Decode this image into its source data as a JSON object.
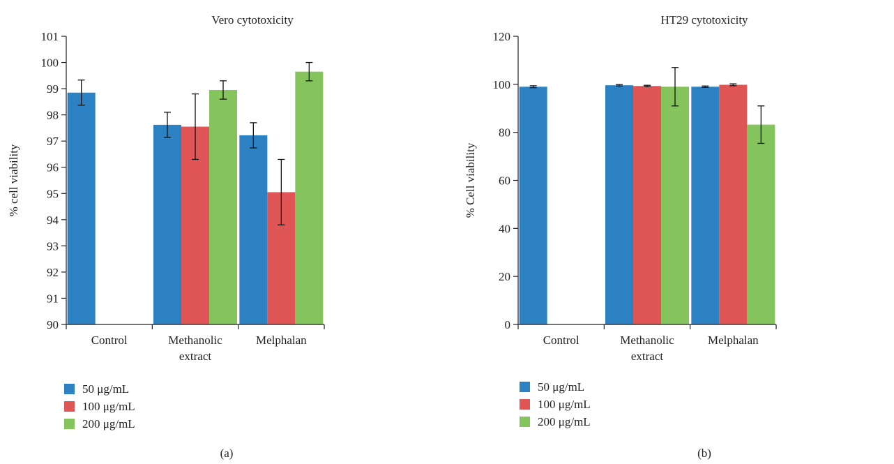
{
  "colors": {
    "s50": "#2b81c2",
    "s100": "#e05656",
    "s200": "#85c35c",
    "axis": "#222222"
  },
  "legend_labels": [
    "50 μg/mL",
    "100 μg/mL",
    "200 μg/mL"
  ],
  "chart_data": [
    {
      "type": "bar",
      "title": "Vero cytotoxicity",
      "ylabel": "% cell viability",
      "xlabel": "",
      "panel_label": "(a)",
      "categories": [
        [
          "Control"
        ],
        [
          "Methanolic",
          "extract"
        ],
        [
          "Melphalan"
        ]
      ],
      "ylim": [
        90,
        101
      ],
      "yticks": [
        90,
        91,
        92,
        93,
        94,
        95,
        96,
        97,
        98,
        99,
        100,
        101
      ],
      "grid": false,
      "legend": "bottom-left",
      "series": [
        {
          "name": "50 μg/mL",
          "values": [
            98.85,
            97.62,
            97.22
          ],
          "errors": [
            0.48,
            0.48,
            0.48
          ]
        },
        {
          "name": "100 μg/mL",
          "values": [
            null,
            97.55,
            95.05
          ],
          "errors": [
            null,
            1.25,
            1.25
          ]
        },
        {
          "name": "200 μg/mL",
          "values": [
            null,
            98.95,
            99.65
          ],
          "errors": [
            null,
            0.35,
            0.35
          ]
        }
      ]
    },
    {
      "type": "bar",
      "title": "HT29 cytotoxicity",
      "ylabel": "% Cell viability",
      "xlabel": "",
      "panel_label": "(b)",
      "categories": [
        [
          "Control"
        ],
        [
          "Methanolic",
          "extract"
        ],
        [
          "Melphalan"
        ]
      ],
      "ylim": [
        0,
        120
      ],
      "yticks": [
        0,
        20,
        40,
        60,
        80,
        100,
        120
      ],
      "grid": false,
      "legend": "bottom-left",
      "series": [
        {
          "name": "50 μg/mL",
          "values": [
            99.0,
            99.6,
            99.0
          ],
          "errors": [
            0.4,
            0.3,
            0.3
          ]
        },
        {
          "name": "100 μg/mL",
          "values": [
            null,
            99.3,
            99.8
          ],
          "errors": [
            null,
            0.3,
            0.4
          ]
        },
        {
          "name": "200 μg/mL",
          "values": [
            null,
            99.0,
            83.2
          ],
          "errors": [
            null,
            8.0,
            7.8
          ]
        }
      ]
    }
  ]
}
